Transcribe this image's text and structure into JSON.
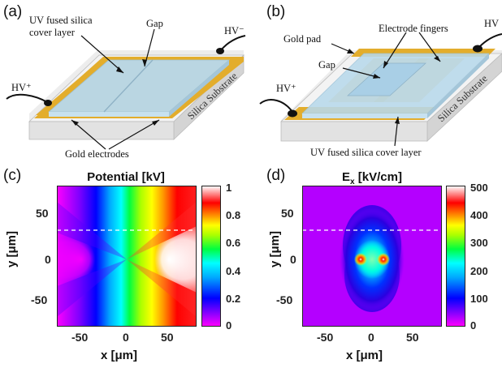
{
  "panels": {
    "a": {
      "letter": "(a)",
      "labels": {
        "cover_layer_line1": "UV fused silica",
        "cover_layer_line2": "cover layer",
        "gap": "Gap",
        "hv_minus": "HV⁻",
        "hv_plus": "HV⁺",
        "substrate": "Silica Substrate",
        "electrodes": "Gold electrodes"
      }
    },
    "b": {
      "letter": "(b)",
      "labels": {
        "gold_pad": "Gold pad",
        "electrode_fingers": "Electrode fingers",
        "gap": "Gap",
        "hv_minus": "HV",
        "hv_plus": "HV⁺",
        "substrate": "Silica Substrate",
        "cover_layer": "UV fused silica cover layer"
      }
    },
    "c": {
      "letter": "(c)",
      "title": "Potential [kV]",
      "xlabel": "x [μm]",
      "ylabel": "y [μm]",
      "xticks": [
        "-50",
        "0",
        "50"
      ],
      "yticks": [
        "50",
        "0",
        "-50"
      ],
      "colorbar_ticks": [
        "1",
        "0.8",
        "0.6",
        "0.4",
        "0.2",
        "0"
      ]
    },
    "d": {
      "letter": "(d)",
      "title_main": "E",
      "title_sub": "x",
      "title_rest": " [kV/cm]",
      "xlabel": "x [μm]",
      "ylabel": "y [μm]",
      "xticks": [
        "-50",
        "0",
        "50"
      ],
      "yticks": [
        "50",
        "0",
        "-50"
      ],
      "colorbar_ticks": [
        "500",
        "400",
        "300",
        "200",
        "100",
        "0"
      ]
    }
  },
  "colors": {
    "gold": "#e3ad2c",
    "cover_glass": "#b8d9ec",
    "substrate_side": "#d4d4d4",
    "colormap": [
      "#ff00ff",
      "#0000ff",
      "#00ffff",
      "#00ff00",
      "#ffff00",
      "#ff8000",
      "#ff0000",
      "#ffffff"
    ]
  }
}
